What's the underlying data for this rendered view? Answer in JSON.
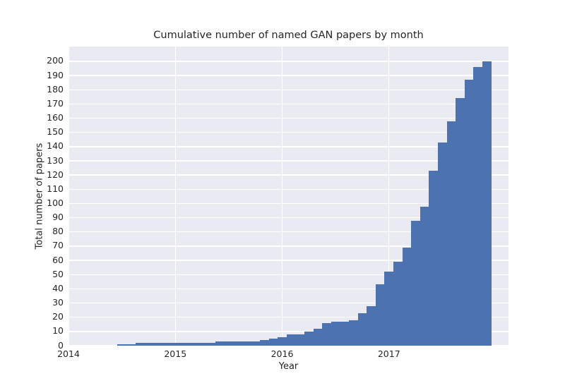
{
  "chart_data": {
    "type": "bar",
    "title": "Cumulative number of named GAN papers by month",
    "xlabel": "Year",
    "ylabel": "Total number of papers",
    "x_tick_labels": [
      "2014",
      "2015",
      "2016",
      "2017"
    ],
    "y_ticks": [
      0,
      10,
      20,
      30,
      40,
      50,
      60,
      70,
      80,
      90,
      100,
      110,
      120,
      130,
      140,
      150,
      160,
      170,
      180,
      190,
      200
    ],
    "ylim": [
      0,
      210
    ],
    "xlim_years": [
      2014.0,
      2018.12
    ],
    "grid": "on, white lines, below bars",
    "legend": "none",
    "bar_color": "#4c72b0",
    "plot_bg_color": "#eaeaf2",
    "figure_bg_color": "#ffffff",
    "text_color": "#262626",
    "months": [
      "2014-07",
      "2014-08",
      "2014-09",
      "2014-10",
      "2014-11",
      "2014-12",
      "2015-01",
      "2015-02",
      "2015-03",
      "2015-04",
      "2015-05",
      "2015-06",
      "2015-07",
      "2015-08",
      "2015-09",
      "2015-10",
      "2015-11",
      "2015-12",
      "2016-01",
      "2016-02",
      "2016-03",
      "2016-04",
      "2016-05",
      "2016-06",
      "2016-07",
      "2016-08",
      "2016-09",
      "2016-10",
      "2016-11",
      "2016-12",
      "2017-01",
      "2017-02",
      "2017-03",
      "2017-04",
      "2017-05",
      "2017-06",
      "2017-07",
      "2017-08",
      "2017-09",
      "2017-10",
      "2017-11",
      "2017-12"
    ],
    "values": [
      1,
      1,
      2,
      2,
      2,
      2,
      2,
      2,
      2,
      2,
      2,
      3,
      3,
      3,
      3,
      3,
      4,
      5,
      6,
      8,
      8,
      10,
      12,
      16,
      17,
      17,
      18,
      23,
      28,
      43,
      52,
      59,
      69,
      88,
      98,
      123,
      143,
      158,
      174,
      187,
      196,
      200
    ]
  }
}
